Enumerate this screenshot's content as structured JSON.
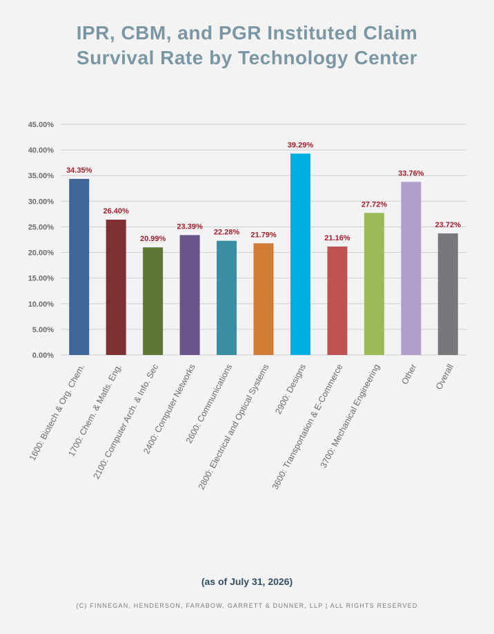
{
  "title_lines": [
    "IPR, CBM, and PGR Instituted Claim",
    "Survival Rate by Technology Center"
  ],
  "note": "(as of July 31, 2026)",
  "copyright": "(c) Finnegan, Henderson, Farabow, Garrett & Dunner, LLP | All Rights Reserved",
  "colors": {
    "background": "#f3f3f3",
    "title": "#7b97a3",
    "data_label": "#a61c2b",
    "tick_label": "#6b6b6b",
    "grid": "#cfcfcf"
  },
  "chart_data": {
    "type": "bar",
    "title": "",
    "xlabel": "",
    "ylabel": "",
    "ylim": [
      0,
      45
    ],
    "y_ticks": [
      "0.00%",
      "5.00%",
      "10.00%",
      "15.00%",
      "20.00%",
      "25.00%",
      "30.00%",
      "35.00%",
      "40.00%",
      "45.00%"
    ],
    "y_tick_values": [
      0,
      5,
      10,
      15,
      20,
      25,
      30,
      35,
      40,
      45
    ],
    "grid": true,
    "categories": [
      "1600: Biotech & Org. Chem.",
      "1700: Chem. & Matls. Eng.",
      "2100: Computer Arch. & Info. Sec",
      "2400: Computer Networks",
      "2600: Communications",
      "2800: Electrical and Optical Systems",
      "2900: Designs",
      "3600: Transportation & E-Commerce",
      "3700: Mechanical Engineering",
      "Other",
      "Overall"
    ],
    "values": [
      34.35,
      26.4,
      20.99,
      23.39,
      22.28,
      21.79,
      39.29,
      21.16,
      27.72,
      33.76,
      23.72
    ],
    "value_labels": [
      "34.35%",
      "26.40%",
      "20.99%",
      "23.39%",
      "22.28%",
      "21.79%",
      "39.29%",
      "21.16%",
      "27.72%",
      "33.76%",
      "23.72%"
    ],
    "bar_colors": [
      "#3e6696",
      "#7d2f31",
      "#5e7636",
      "#68538a",
      "#3b8ea2",
      "#d07c36",
      "#00b0e0",
      "#c05252",
      "#9bbb59",
      "#b09fca",
      "#77787c"
    ]
  }
}
